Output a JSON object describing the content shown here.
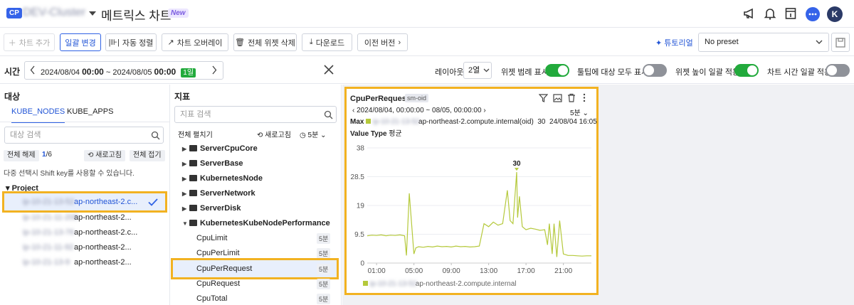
{
  "header": {
    "cp_badge": "CP",
    "cluster_name": "DEV-Cluster",
    "title": "메트릭스 차트",
    "new_badge": "New",
    "avatar_letter": "K"
  },
  "toolbar": {
    "add_chart": "차트 추가",
    "bulk_change": "일괄 변경",
    "auto_align": "자동 정렬",
    "chart_overlay": "차트 오버레이",
    "delete_all": "전체 위젯 삭제",
    "download": "다운로드",
    "prev_version": "이전 버전",
    "tutorial": "튜토리얼",
    "preset": "No preset"
  },
  "time": {
    "label": "시간",
    "start_date": "2024/08/04",
    "start_time": "00:00",
    "sep": "~",
    "end_date": "2024/08/05",
    "end_time": "00:00",
    "span": "1일"
  },
  "options": {
    "layout_label": "레이아웃",
    "layout_value": "2열",
    "legend_label": "위젯 범례 표시",
    "tooltip_label": "툴팁에 대상 모두 표시",
    "height_label": "위젯 높이 일괄 적용",
    "time_label": "차트 시간 일괄 적용",
    "legend_on": true,
    "tooltip_on": false,
    "height_on": true,
    "time_on": false
  },
  "target": {
    "title": "대상",
    "tabs": [
      "KUBE_NODES",
      "KUBE_APPS"
    ],
    "search_placeholder": "대상 검색",
    "deselect_all": "전체 해제",
    "count_selected": "1",
    "count_total": "/6",
    "refresh": "새로고침",
    "collapse_all": "전체 접기",
    "hint": "다중 선택시 Shift key를 사용할 수 있습니다.",
    "project": "Project",
    "nodes": [
      {
        "ip": "ip-10-21-13-52",
        "host": "ap-northeast-2.c...",
        "selected": true
      },
      {
        "ip": "ip-10-21-11-208",
        "host": "ap-northeast-2...",
        "selected": false
      },
      {
        "ip": "ip-10-21-13-76",
        "host": "ap-northeast-2.c...",
        "selected": false
      },
      {
        "ip": "ip-10-21-11-92",
        "host": "ap-northeast-2...",
        "selected": false
      },
      {
        "ip": "ip-10-21-13-9",
        "host": "ap-northeast-2...",
        "selected": false
      }
    ]
  },
  "metrics": {
    "title": "지표",
    "search_placeholder": "지표 검색",
    "expand_all": "전체 펼치기",
    "refresh": "새로고침",
    "interval": "5분",
    "folders": [
      "ServerCpuCore",
      "ServerBase",
      "KubernetesNode",
      "ServerNetwork",
      "ServerDisk",
      "KubernetesKubeNodePerformance"
    ],
    "leaves": [
      {
        "name": "CpuLimit",
        "interval": "5분"
      },
      {
        "name": "CpuPerLimit",
        "interval": "5분"
      },
      {
        "name": "CpuPerRequest",
        "interval": "5분"
      },
      {
        "name": "CpuRequest",
        "interval": "5분"
      },
      {
        "name": "CpuTotal",
        "interval": "5분"
      }
    ]
  },
  "widget": {
    "title": "CpuPerRequest",
    "tag": "sm-oid",
    "range": "2024/08/04, 00:00:00 ~ 08/05, 00:00:00",
    "interval": "5분",
    "max_label": "Max",
    "max_ip": "ip-10-21-13-52",
    "max_host": "ap-northeast-2.compute.internal(oid)",
    "max_value": "30",
    "max_time": "24/08/04 16:05",
    "value_type_label": "Value Type",
    "value_type": "평균",
    "legend_ip": "ip-10-21-13-52",
    "legend_host": "ap-northeast-2.compute.internal",
    "peak_label": "30",
    "colors": {
      "series": "#b5c93b",
      "peak": "#b5c93b"
    }
  },
  "chart_data": {
    "type": "line",
    "ylim": [
      0,
      38
    ],
    "yticks": [
      "38",
      "28.5",
      "19",
      "9.5",
      "0"
    ],
    "xticks": [
      "01:00",
      "05:00",
      "09:00",
      "13:00",
      "17:00",
      "21:00"
    ],
    "series": [
      {
        "x": [
          0,
          0.5,
          1,
          1.5,
          2,
          2.5,
          3,
          3.5,
          4,
          4.2,
          4.5,
          5,
          5.2,
          5.5,
          6,
          6.5,
          7,
          7.5,
          8,
          8.5,
          9,
          9.5,
          10,
          10.5,
          11,
          11.5,
          12,
          12.5,
          13,
          13.5,
          14,
          14.5,
          15,
          15.3,
          15.6,
          16,
          16.1,
          16.3,
          16.6,
          17,
          17.5,
          18,
          18.5,
          19,
          19.3,
          19.5,
          19.8,
          20,
          20.3,
          20.6,
          21,
          21.5,
          22,
          22.5,
          23,
          23.5,
          24
        ],
        "values": [
          9,
          9.2,
          9.1,
          9.3,
          9.0,
          9.2,
          9.1,
          9.3,
          9.0,
          2.5,
          23,
          3,
          5,
          5.4,
          5.2,
          5.5,
          5.3,
          5.6,
          5.4,
          5.5,
          5.3,
          5.6,
          5.4,
          5.5,
          5.3,
          5.4,
          5.6,
          13,
          12,
          13.5,
          12.5,
          13,
          24,
          14,
          13,
          30,
          15,
          22,
          12,
          11,
          11.5,
          11.2,
          10.8,
          11,
          6,
          13,
          3,
          13,
          2,
          14,
          3,
          2.5,
          2.5,
          2.4,
          2.3,
          2.4,
          2.4
        ]
      }
    ]
  }
}
